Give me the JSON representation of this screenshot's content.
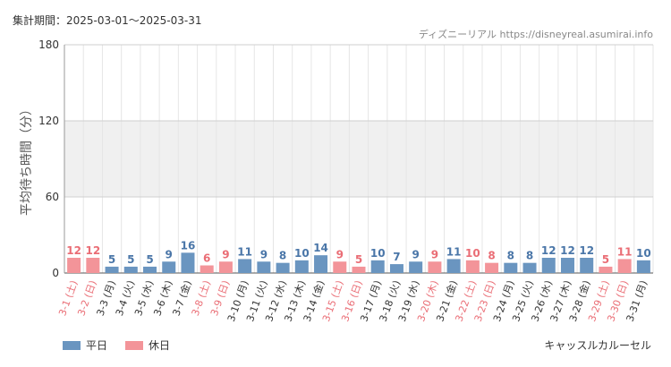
{
  "header": {
    "period_label": "集計期間：2025-03-01〜2025-03-31",
    "source": "ディズニーリアル https://disneyreal.asumirai.info"
  },
  "footer": {
    "attraction": "キャッスルカルーセル",
    "legend_weekday": "平日",
    "legend_holiday": "休日"
  },
  "colors": {
    "weekday": "#6a95c0",
    "holiday": "#f39499",
    "weekday_label": "#4a76a8",
    "holiday_label": "#ea6d75",
    "band": "#f0f0f0",
    "grid": "#e6e6e6"
  },
  "chart_data": {
    "type": "bar",
    "ylabel": "平均待ち時間（分）",
    "ylim": [
      0,
      180
    ],
    "yticks": [
      0,
      60,
      120,
      180
    ],
    "categories": [
      "3-1 (土)",
      "3-2 (日)",
      "3-3 (月)",
      "3-4 (火)",
      "3-5 (水)",
      "3-6 (木)",
      "3-7 (金)",
      "3-8 (土)",
      "3-9 (日)",
      "3-10 (月)",
      "3-11 (火)",
      "3-12 (水)",
      "3-13 (木)",
      "3-14 (金)",
      "3-15 (土)",
      "3-16 (日)",
      "3-17 (月)",
      "3-18 (火)",
      "3-19 (水)",
      "3-20 (木)",
      "3-21 (金)",
      "3-22 (土)",
      "3-23 (日)",
      "3-24 (月)",
      "3-25 (火)",
      "3-26 (水)",
      "3-27 (木)",
      "3-28 (金)",
      "3-29 (土)",
      "3-30 (日)",
      "3-31 (月)"
    ],
    "values": [
      12,
      12,
      5,
      5,
      5,
      9,
      16,
      6,
      9,
      11,
      9,
      8,
      10,
      14,
      9,
      5,
      10,
      7,
      9,
      9,
      11,
      10,
      8,
      8,
      8,
      12,
      12,
      12,
      5,
      11,
      10
    ],
    "day_type": [
      "holiday",
      "holiday",
      "weekday",
      "weekday",
      "weekday",
      "weekday",
      "weekday",
      "holiday",
      "holiday",
      "weekday",
      "weekday",
      "weekday",
      "weekday",
      "weekday",
      "holiday",
      "holiday",
      "weekday",
      "weekday",
      "weekday",
      "holiday",
      "weekday",
      "holiday",
      "holiday",
      "weekday",
      "weekday",
      "weekday",
      "weekday",
      "weekday",
      "holiday",
      "holiday",
      "weekday"
    ],
    "shaded_band": [
      60,
      120
    ],
    "grid": true
  }
}
